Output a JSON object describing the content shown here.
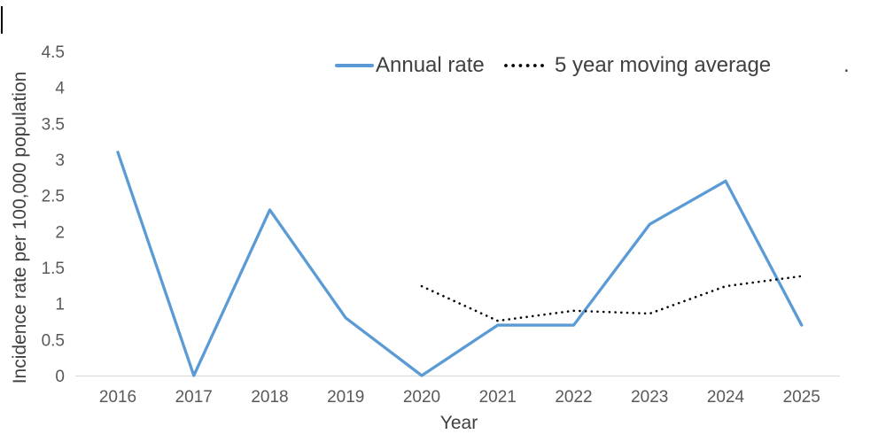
{
  "chart_data": {
    "type": "line",
    "title": "",
    "x": [
      "2016",
      "2017",
      "2018",
      "2019",
      "2020",
      "2021",
      "2022",
      "2023",
      "2024",
      "2025"
    ],
    "series": [
      {
        "name": "Annual rate",
        "values": [
          3.1,
          0,
          2.3,
          0.8,
          0,
          0.7,
          0.7,
          2.1,
          2.7,
          0.7
        ],
        "color": "#5B9BD5",
        "line_style": "solid"
      },
      {
        "name": "5 year moving average",
        "values": [
          null,
          null,
          null,
          null,
          1.24,
          0.76,
          0.9,
          0.86,
          1.24,
          1.38
        ],
        "color": "#000000",
        "line_style": "dotted"
      }
    ],
    "xlabel": "Year",
    "ylabel": "Incidence rate per 100,000 population",
    "ylim": [
      0,
      4.5
    ],
    "y_ticks": [
      "0",
      "0.5",
      "1",
      "1.5",
      "2",
      "2.5",
      "3",
      "3.5",
      "4",
      "4.5"
    ],
    "grid": false,
    "legend_position": "top",
    "legend_trailing_text": ".",
    "axis_line_color": "#D9D9D9",
    "tick_label_color": "#595959",
    "text_color": "#404040"
  }
}
